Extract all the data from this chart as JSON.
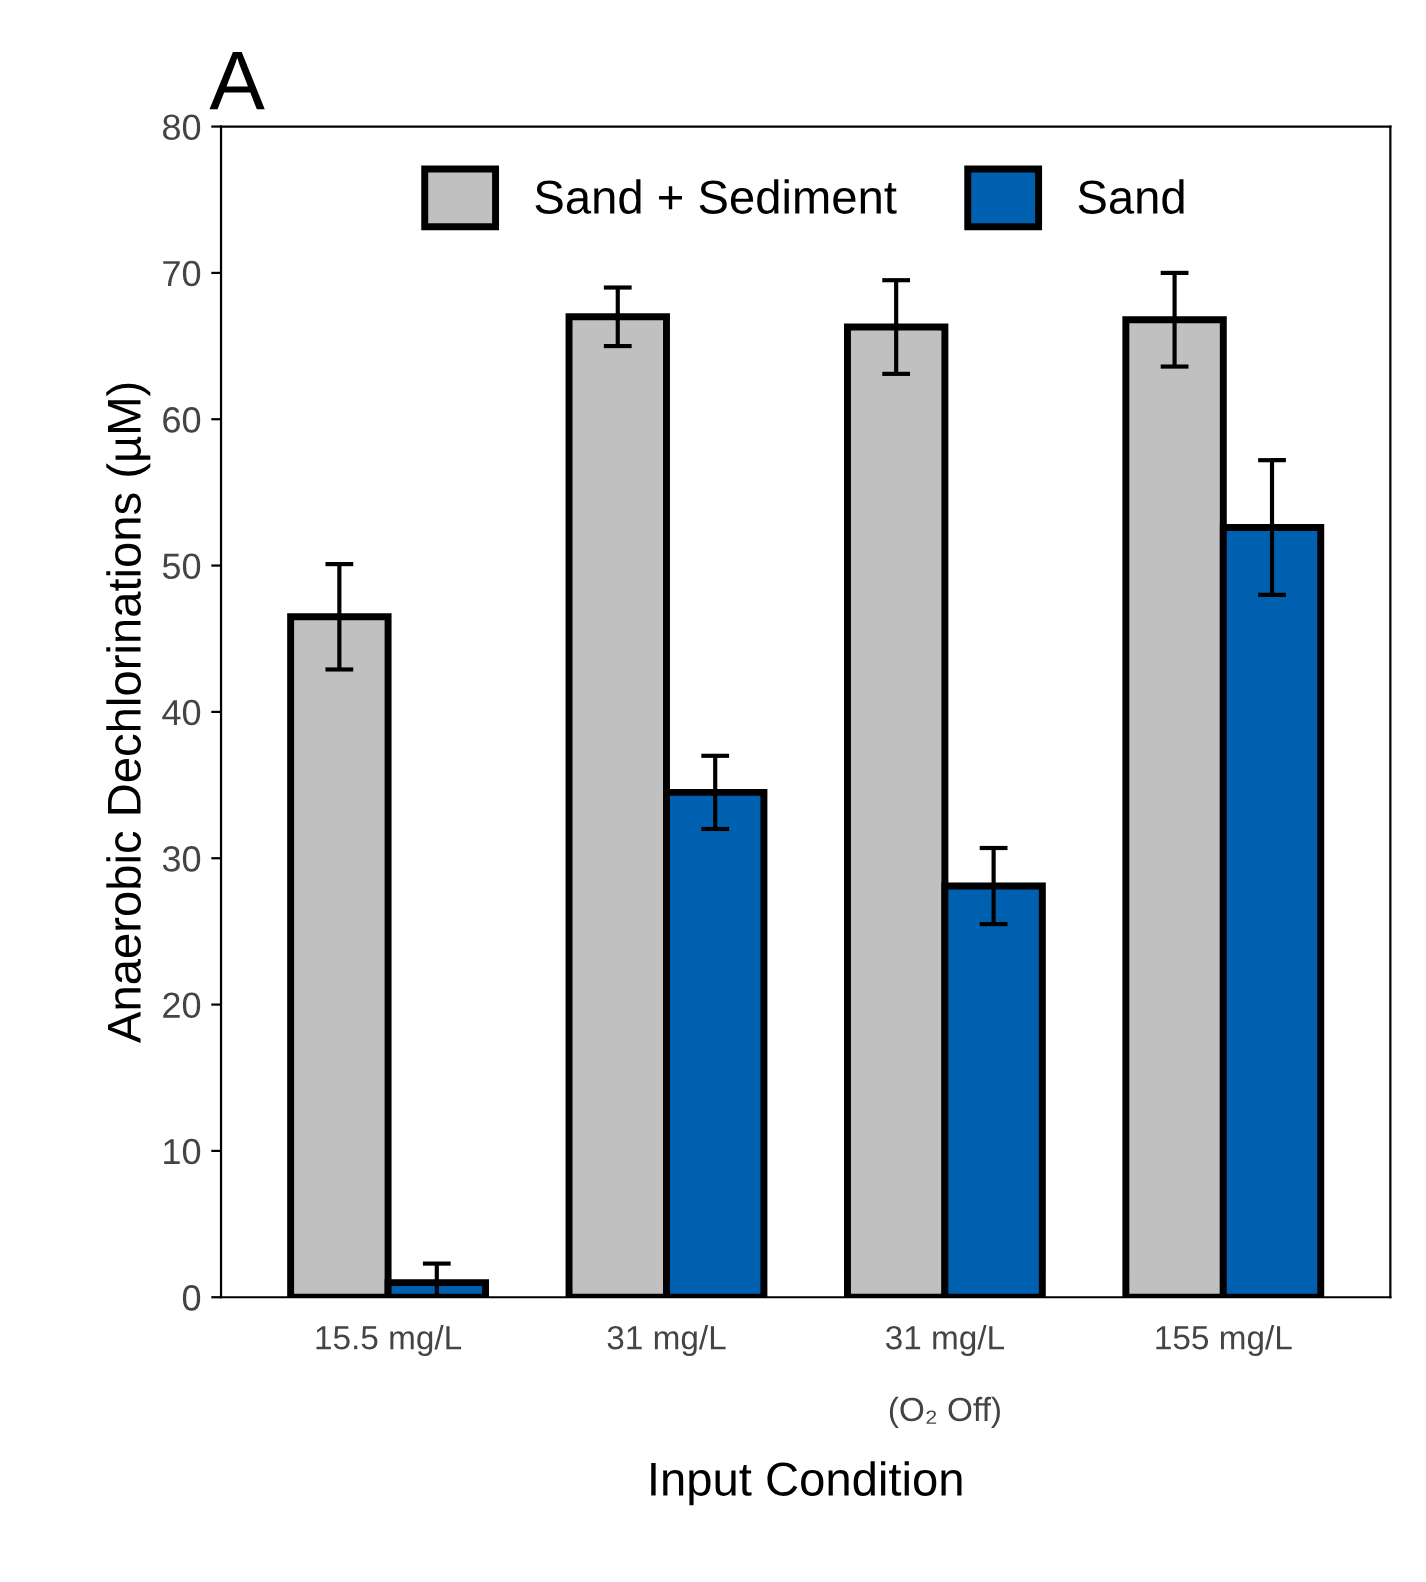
{
  "chart_data": {
    "type": "bar",
    "title": "A",
    "xlabel": "Input Condition",
    "ylabel": "Anaerobic Dechlorinations (µM)",
    "categories": [
      "15.5 mg/L",
      "31 mg/L",
      "31 mg/L\n\n(O₂ Off)",
      "155 mg/L"
    ],
    "series": [
      {
        "name": "Sand + Sediment",
        "color": "#c0c0c0",
        "values": [
          46.5,
          67.0,
          66.3,
          66.8
        ],
        "errors": [
          3.6,
          2.0,
          3.2,
          3.2
        ]
      },
      {
        "name": "Sand",
        "color": "#0060b0",
        "values": [
          1.0,
          34.5,
          28.1,
          52.6
        ],
        "errors": [
          1.3,
          2.5,
          2.6,
          4.6
        ]
      }
    ],
    "ylim": [
      0,
      80
    ],
    "yticks": [
      0,
      10,
      20,
      30,
      40,
      50,
      60,
      70,
      80
    ],
    "grid": false,
    "legend": "top"
  }
}
